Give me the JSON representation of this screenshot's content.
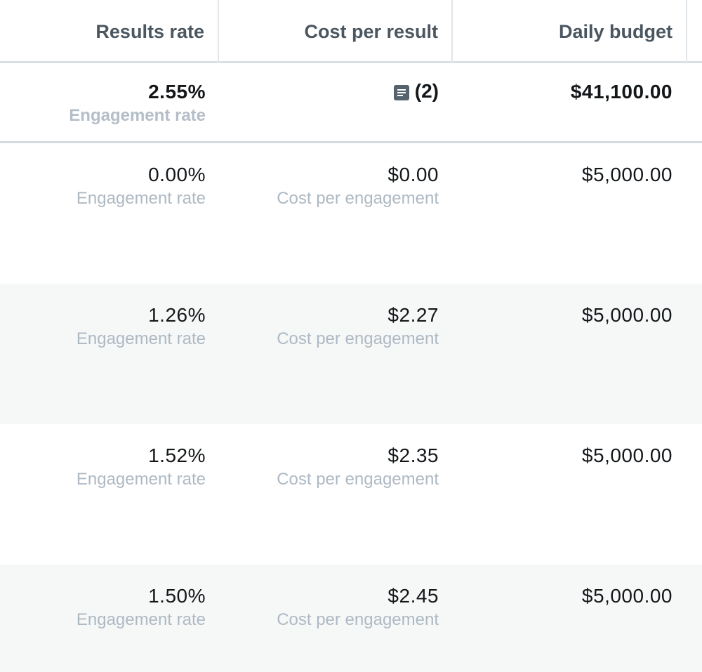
{
  "header": {
    "results_rate": "Results rate",
    "cost_per_result": "Cost per result",
    "daily_budget": "Daily budget"
  },
  "totals": {
    "results_rate": "2.55%",
    "results_rate_sub": "Engagement rate",
    "cost_per_result_note_count": "(2)",
    "daily_budget": "$41,100.00"
  },
  "rows": [
    {
      "results_rate": "0.00%",
      "results_rate_sub": "Engagement rate",
      "cost_per_result": "$0.00",
      "cost_per_result_sub": "Cost per engagement",
      "daily_budget": "$5,000.00"
    },
    {
      "results_rate": "1.26%",
      "results_rate_sub": "Engagement rate",
      "cost_per_result": "$2.27",
      "cost_per_result_sub": "Cost per engagement",
      "daily_budget": "$5,000.00"
    },
    {
      "results_rate": "1.52%",
      "results_rate_sub": "Engagement rate",
      "cost_per_result": "$2.35",
      "cost_per_result_sub": "Cost per engagement",
      "daily_budget": "$5,000.00"
    },
    {
      "results_rate": "1.50%",
      "results_rate_sub": "Engagement rate",
      "cost_per_result": "$2.45",
      "cost_per_result_sub": "Cost per engagement",
      "daily_budget": "$5,000.00"
    }
  ],
  "icons": {
    "note": "note-icon"
  },
  "colors": {
    "header_text": "#4a5660",
    "sub_text": "#aeb9c3",
    "shaded_row": "#f6f8f8",
    "border": "#d9dfe4"
  }
}
